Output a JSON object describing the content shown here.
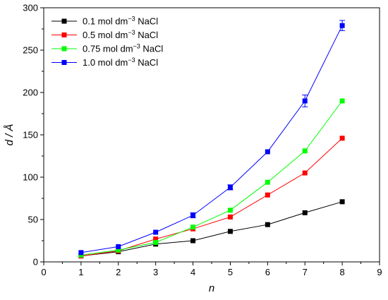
{
  "chart_data": {
    "type": "line",
    "xlabel": "n",
    "ylabel": "d / Å",
    "xlim": [
      0,
      9
    ],
    "ylim": [
      0,
      300
    ],
    "xticks": [
      0,
      1,
      2,
      3,
      4,
      5,
      6,
      7,
      8,
      9
    ],
    "yticks": [
      0,
      50,
      100,
      150,
      200,
      250,
      300
    ],
    "grid": false,
    "legend_position": "top-left",
    "x": [
      1,
      2,
      3,
      4,
      5,
      6,
      7,
      8
    ],
    "series": [
      {
        "name": "0.1 mol dm⁻³ NaCl",
        "legend": {
          "prefix": "0.1 mol dm",
          "sup": "−3",
          "suffix": " NaCl"
        },
        "color": "#000000",
        "values": [
          7,
          12,
          21,
          25,
          36,
          44,
          58,
          71
        ],
        "errors": [
          0,
          0,
          0,
          0,
          0,
          0,
          0,
          0
        ]
      },
      {
        "name": "0.5 mol dm⁻³ NaCl",
        "legend": {
          "prefix": "0.5 mol dm",
          "sup": "−3",
          "suffix": " NaCl"
        },
        "color": "#ff0000",
        "values": [
          7,
          13,
          27,
          39,
          53,
          79,
          105,
          146
        ],
        "errors": [
          0,
          0,
          0,
          0,
          0,
          0,
          0,
          0
        ]
      },
      {
        "name": "0.75 mol dm⁻³ NaCl",
        "legend": {
          "prefix": "0.75 mol dm",
          "sup": "−3",
          "suffix": " NaCl"
        },
        "color": "#00ff00",
        "values": [
          8,
          14,
          23,
          41,
          61,
          94,
          131,
          190
        ],
        "errors": [
          0,
          0,
          0,
          0,
          0,
          0,
          0,
          0
        ]
      },
      {
        "name": "1.0 mol dm⁻³ NaCl",
        "legend": {
          "prefix": "1.0 mol dm",
          "sup": "−3",
          "suffix": " NaCl"
        },
        "color": "#0000ff",
        "values": [
          11,
          18,
          35,
          55,
          88,
          130,
          190,
          279
        ],
        "errors": [
          0,
          0,
          0,
          3,
          3,
          0,
          7,
          6
        ]
      }
    ]
  }
}
